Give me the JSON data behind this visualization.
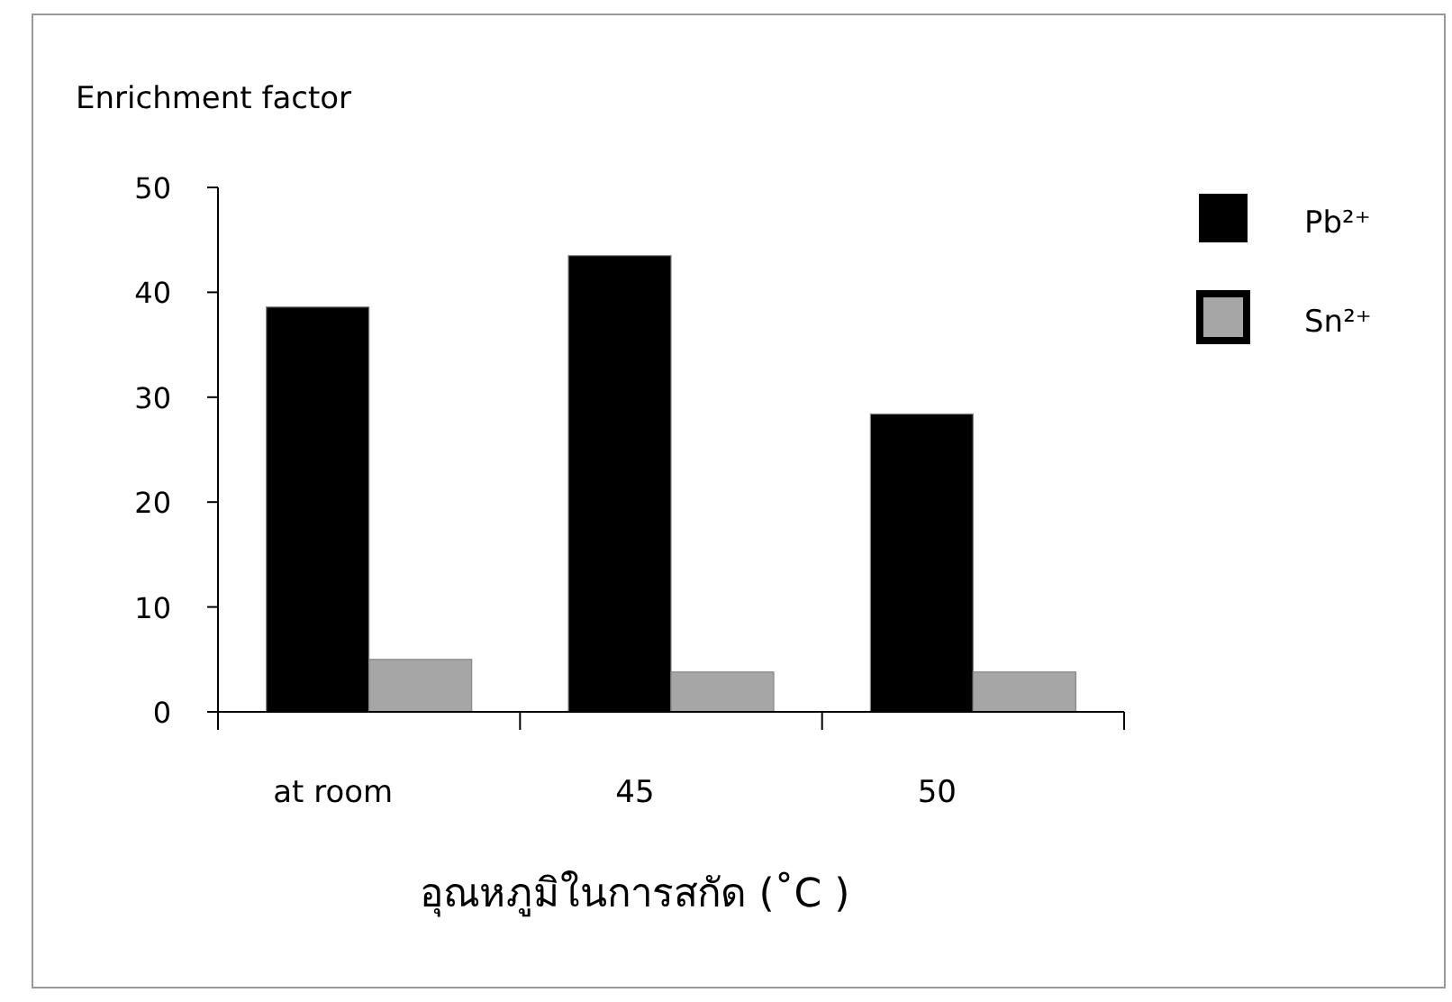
{
  "chart_data": {
    "type": "bar",
    "ylabel": "Enrichment factor",
    "xlabel": "อุณหภูมิในการสกัด (˚C )",
    "categories": [
      "at room",
      "45",
      "50"
    ],
    "series": [
      {
        "name": "Pb²⁺",
        "color": "#000000",
        "values": [
          38.6,
          43.5,
          28.4
        ]
      },
      {
        "name": "Sn²⁺",
        "color": "#a6a6a6",
        "values": [
          5.0,
          3.8,
          3.8
        ]
      }
    ],
    "ylim": [
      0,
      50
    ],
    "yticks": [
      0,
      10,
      20,
      30,
      40,
      50
    ],
    "legend": "top right",
    "grid": false
  }
}
